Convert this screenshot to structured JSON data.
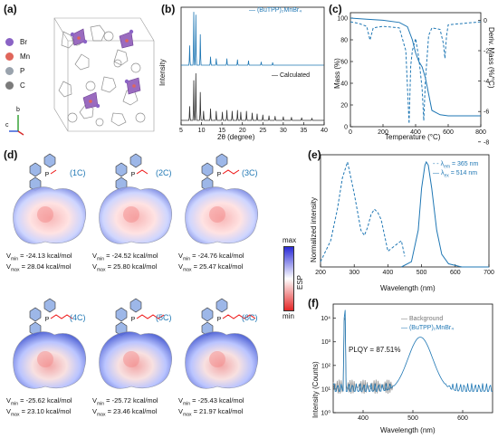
{
  "panels": {
    "a": "(a)",
    "b": "(b)",
    "c": "(c)",
    "d": "(d)",
    "e": "(e)",
    "f": "(f)"
  },
  "crystal": {
    "legend": [
      {
        "label": "Br",
        "color": "#8a63c5"
      },
      {
        "label": "Mn",
        "color": "#e0665b"
      },
      {
        "label": "P",
        "color": "#9aa3ad"
      },
      {
        "label": "C",
        "color": "#7b7b7b"
      }
    ],
    "axes": {
      "b": "b",
      "c": "c",
      "a": "a"
    }
  },
  "chart_b": {
    "type": "line",
    "xlabel": "2θ (degree)",
    "ylabel": "Intensity",
    "xlim": [
      5,
      40
    ],
    "xticks": [
      "5",
      "10",
      "15",
      "20",
      "25",
      "30",
      "35",
      "40"
    ],
    "series": [
      {
        "name": "(BuTPP)₂MnBr₄",
        "color": "#1f77b4",
        "peaks": [
          [
            7.1,
            0.35
          ],
          [
            8.1,
            0.95
          ],
          [
            8.6,
            0.9
          ],
          [
            9.7,
            0.55
          ],
          [
            12.2,
            0.15
          ],
          [
            13.6,
            0.12
          ],
          [
            16.2,
            0.12
          ],
          [
            18.8,
            0.1
          ],
          [
            21.5,
            0.08
          ],
          [
            24.6,
            0.06
          ],
          [
            27.4,
            0.05
          ]
        ]
      },
      {
        "name": "Calculated",
        "color": "#333333",
        "peaks": [
          [
            7.1,
            0.3
          ],
          [
            8.1,
            0.85
          ],
          [
            8.6,
            1.0
          ],
          [
            9.7,
            0.6
          ],
          [
            10.5,
            0.2
          ],
          [
            12.2,
            0.25
          ],
          [
            13.6,
            0.2
          ],
          [
            15.1,
            0.18
          ],
          [
            16.2,
            0.22
          ],
          [
            17.5,
            0.2
          ],
          [
            18.8,
            0.22
          ],
          [
            19.6,
            0.18
          ],
          [
            21.0,
            0.2
          ],
          [
            22.4,
            0.16
          ],
          [
            23.6,
            0.14
          ],
          [
            25.0,
            0.12
          ],
          [
            26.5,
            0.1
          ],
          [
            28.0,
            0.09
          ],
          [
            30.0,
            0.08
          ],
          [
            32.0,
            0.07
          ],
          [
            34.5,
            0.06
          ],
          [
            37.0,
            0.05
          ]
        ]
      }
    ]
  },
  "chart_c": {
    "type": "line",
    "xlabel": "Temperature (°C)",
    "ylabel_left": "Mass (%)",
    "ylabel_right": "Deriv. Mass (%/°C)",
    "xticks": [
      "0",
      "200",
      "400",
      "600",
      "800"
    ],
    "yticks_left": [
      "0",
      "20",
      "40",
      "60",
      "80",
      "100"
    ],
    "yticks_right": [
      "0",
      "-2",
      "-4",
      "-6",
      "-8"
    ],
    "mass": {
      "x": [
        0,
        100,
        200,
        300,
        350,
        380,
        400,
        420,
        440,
        460,
        480,
        500,
        550,
        600,
        800
      ],
      "y": [
        100,
        99,
        98,
        96,
        92,
        80,
        68,
        60,
        55,
        45,
        30,
        15,
        11,
        10,
        10
      ]
    },
    "deriv": {
      "x": [
        0,
        50,
        100,
        120,
        140,
        200,
        300,
        340,
        360,
        370,
        380,
        400,
        420,
        440,
        450,
        460,
        480,
        500,
        550,
        570,
        580,
        590,
        600,
        800
      ],
      "y": [
        -0.1,
        -0.2,
        -0.4,
        -1.3,
        -0.5,
        -0.4,
        -0.5,
        -2.0,
        -6.8,
        -3.0,
        -2.0,
        -1.2,
        -2.5,
        -4.5,
        -6.6,
        -4.0,
        -1.0,
        -0.5,
        -0.6,
        -1.5,
        -2.5,
        -1.0,
        -0.3,
        -0.1
      ]
    }
  },
  "esp": {
    "title": "ESP",
    "max": "max",
    "min": "min",
    "molecules": [
      {
        "id": "(1C)",
        "vmin": "= -24.13 kcal/mol",
        "vmax": "= 28.04 kcal/mol"
      },
      {
        "id": "(2C)",
        "vmin": "= -24.52 kcal/mol",
        "vmax": "= 25.80 kcal/mol"
      },
      {
        "id": "(3C)",
        "vmin": "= -24.76 kcal/mol",
        "vmax": "= 25.47 kcal/mol"
      },
      {
        "id": "(4C)",
        "vmin": "= -25.62 kcal/mol",
        "vmax": "= 23.10 kcal/mol"
      },
      {
        "id": "(5C)",
        "vmin": "= -25.72 kcal/mol",
        "vmax": "= 23.46 kcal/mol"
      },
      {
        "id": "(6C)",
        "vmin": "= -25.43 kcal/mol",
        "vmax": "= 21.97 kcal/mol"
      }
    ]
  },
  "chart_e": {
    "type": "line",
    "xlabel": "Wavelength (nm)",
    "ylabel": "Normalized intensity",
    "xticks": [
      "200",
      "300",
      "400",
      "500",
      "600",
      "700"
    ],
    "series": [
      {
        "name": "λ",
        "sub": "em",
        "value": "= 365 nm",
        "style": "dashed",
        "x": [
          200,
          230,
          250,
          265,
          280,
          300,
          320,
          330,
          340,
          350,
          360,
          370,
          380,
          390,
          400,
          420,
          440,
          450
        ],
        "y": [
          0.05,
          0.25,
          0.55,
          0.85,
          1.0,
          0.7,
          0.35,
          0.3,
          0.38,
          0.5,
          0.55,
          0.52,
          0.45,
          0.3,
          0.15,
          0.2,
          0.25,
          0.1
        ]
      },
      {
        "name": "λ",
        "sub": "ex",
        "value": "= 514 nm",
        "style": "solid",
        "x": [
          440,
          470,
          490,
          500,
          510,
          514,
          520,
          530,
          545,
          560,
          580,
          620,
          700
        ],
        "y": [
          0.0,
          0.05,
          0.35,
          0.75,
          0.97,
          1.0,
          0.97,
          0.75,
          0.35,
          0.12,
          0.03,
          0.0,
          0.0
        ]
      }
    ]
  },
  "chart_f": {
    "type": "line",
    "xlabel": "Wavelength (nm)",
    "ylabel": "Intensity (Counts)",
    "xticks": [
      "400",
      "500",
      "600"
    ],
    "yticks": [
      "10⁰",
      "10¹",
      "10²",
      "10³",
      "10⁴"
    ],
    "annotation": "PLQY = 87.51%",
    "series": [
      {
        "name": "Background",
        "color": "#888888"
      },
      {
        "name": "(BuTPP)₂MnBr₄",
        "color": "#1f77b4"
      }
    ]
  }
}
